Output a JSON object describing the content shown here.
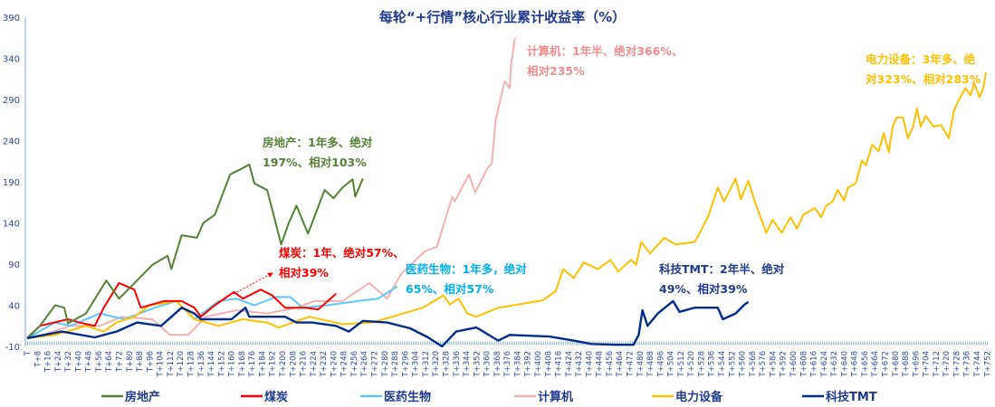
{
  "chart_data": {
    "type": "line",
    "title": "每轮“+行情”核心行业累计收益率（%）",
    "xlabel": "",
    "ylabel": "",
    "ylim": [
      -10,
      390
    ],
    "yticks": [
      "-10",
      "40",
      "90",
      "140",
      "190",
      "240",
      "290",
      "340",
      "390"
    ],
    "xlim": [
      0,
      752
    ],
    "xticks": [
      "T",
      "T+8",
      "T+16",
      "T+24",
      "T+32",
      "T+40",
      "T+48",
      "T+56",
      "T+64",
      "T+72",
      "T+80",
      "T+88",
      "T+96",
      "T+104",
      "T+112",
      "T+120",
      "T+128",
      "T+136",
      "T+144",
      "T+152",
      "T+160",
      "T+168",
      "T+176",
      "T+184",
      "T+192",
      "T+200",
      "T+208",
      "T+216",
      "T+224",
      "T+232",
      "T+240",
      "T+248",
      "T+256",
      "T+264",
      "T+272",
      "T+280",
      "T+288",
      "T+296",
      "T+304",
      "T+312",
      "T+320",
      "T+328",
      "T+336",
      "T+344",
      "T+352",
      "T+360",
      "T+368",
      "T+376",
      "T+384",
      "T+392",
      "T+400",
      "T+408",
      "T+416",
      "T+424",
      "T+432",
      "T+440",
      "T+448",
      "T+456",
      "T+464",
      "T+472",
      "T+480",
      "T+488",
      "T+496",
      "T+504",
      "T+512",
      "T+520",
      "T+528",
      "T+536",
      "T+544",
      "T+552",
      "T+560",
      "T+568",
      "T+576",
      "T+584",
      "T+592",
      "T+600",
      "T+608",
      "T+616",
      "T+624",
      "T+632",
      "T+640",
      "T+648",
      "T+656",
      "T+664",
      "T+672",
      "T+680",
      "T+688",
      "T+696",
      "T+704",
      "T+712",
      "T+720",
      "T+728",
      "T+736",
      "T+744",
      "T+752"
    ],
    "grid": false,
    "legend_placement": "bottom",
    "series": [
      {
        "name": "房地产",
        "color": "#538135",
        "points": [
          [
            0,
            0
          ],
          [
            10,
            15
          ],
          [
            22,
            40
          ],
          [
            29,
            37
          ],
          [
            32,
            18
          ],
          [
            46,
            30
          ],
          [
            62,
            70
          ],
          [
            72,
            48
          ],
          [
            86,
            70
          ],
          [
            98,
            89
          ],
          [
            110,
            100
          ],
          [
            113,
            84
          ],
          [
            121,
            125
          ],
          [
            133,
            122
          ],
          [
            138,
            140
          ],
          [
            147,
            150
          ],
          [
            159,
            199
          ],
          [
            167,
            205
          ],
          [
            174,
            211
          ],
          [
            178,
            188
          ],
          [
            188,
            180
          ],
          [
            193,
            150
          ],
          [
            199,
            114
          ],
          [
            205,
            140
          ],
          [
            211,
            161
          ],
          [
            220,
            127
          ],
          [
            233,
            180
          ],
          [
            240,
            170
          ],
          [
            247,
            183
          ],
          [
            255,
            193
          ],
          [
            257,
            172
          ],
          [
            263,
            194
          ]
        ]
      },
      {
        "name": "煤炭",
        "color": "#ff0000",
        "points": [
          [
            0,
            0
          ],
          [
            10,
            15
          ],
          [
            32,
            23
          ],
          [
            41,
            19
          ],
          [
            53,
            15
          ],
          [
            60,
            37
          ],
          [
            72,
            67
          ],
          [
            84,
            59
          ],
          [
            89,
            37
          ],
          [
            107,
            45
          ],
          [
            121,
            45
          ],
          [
            131,
            37
          ],
          [
            136,
            26
          ],
          [
            147,
            40
          ],
          [
            162,
            56
          ],
          [
            169,
            48
          ],
          [
            183,
            59
          ],
          [
            192,
            52
          ],
          [
            202,
            37
          ],
          [
            218,
            37
          ],
          [
            228,
            35
          ],
          [
            242,
            54
          ]
        ]
      },
      {
        "name": "医药生物",
        "color": "#5bc8f5",
        "points": [
          [
            0,
            0
          ],
          [
            22,
            19
          ],
          [
            34,
            15
          ],
          [
            57,
            30
          ],
          [
            76,
            23
          ],
          [
            100,
            37
          ],
          [
            117,
            45
          ],
          [
            131,
            23
          ],
          [
            150,
            45
          ],
          [
            164,
            48
          ],
          [
            178,
            40
          ],
          [
            195,
            50
          ],
          [
            206,
            50
          ],
          [
            216,
            37
          ],
          [
            235,
            40
          ],
          [
            259,
            45
          ],
          [
            275,
            48
          ],
          [
            288,
            61
          ],
          [
            290,
            63
          ]
        ]
      },
      {
        "name": "计算机",
        "color": "#f4b1b1",
        "points": [
          [
            0,
            0
          ],
          [
            14,
            5
          ],
          [
            34,
            15
          ],
          [
            57,
            15
          ],
          [
            74,
            26
          ],
          [
            98,
            23
          ],
          [
            112,
            4
          ],
          [
            126,
            4
          ],
          [
            140,
            26
          ],
          [
            164,
            34
          ],
          [
            188,
            30
          ],
          [
            211,
            37
          ],
          [
            225,
            45
          ],
          [
            247,
            45
          ],
          [
            268,
            67
          ],
          [
            282,
            48
          ],
          [
            293,
            78
          ],
          [
            312,
            106
          ],
          [
            321,
            111
          ],
          [
            333,
            172
          ],
          [
            335,
            166
          ],
          [
            346,
            199
          ],
          [
            351,
            177
          ],
          [
            360,
            205
          ],
          [
            364,
            213
          ],
          [
            367,
            265
          ],
          [
            374,
            312
          ],
          [
            378,
            304
          ],
          [
            379,
            331
          ],
          [
            382,
            365
          ]
        ]
      },
      {
        "name": "电力设备",
        "color": "#ffc000",
        "points": [
          [
            0,
            0
          ],
          [
            22,
            4
          ],
          [
            46,
            15
          ],
          [
            60,
            8
          ],
          [
            70,
            19
          ],
          [
            84,
            26
          ],
          [
            96,
            40
          ],
          [
            117,
            45
          ],
          [
            131,
            23
          ],
          [
            150,
            15
          ],
          [
            169,
            23
          ],
          [
            188,
            19
          ],
          [
            197,
            13
          ],
          [
            221,
            26
          ],
          [
            247,
            17
          ],
          [
            270,
            19
          ],
          [
            286,
            26
          ],
          [
            310,
            37
          ],
          [
            326,
            52
          ],
          [
            331,
            41
          ],
          [
            338,
            48
          ],
          [
            345,
            30
          ],
          [
            352,
            26
          ],
          [
            369,
            37
          ],
          [
            385,
            41
          ],
          [
            404,
            46
          ],
          [
            414,
            57
          ],
          [
            420,
            84
          ],
          [
            428,
            73
          ],
          [
            436,
            92
          ],
          [
            447,
            84
          ],
          [
            457,
            95
          ],
          [
            463,
            81
          ],
          [
            473,
            95
          ],
          [
            477,
            89
          ],
          [
            481,
            117
          ],
          [
            488,
            103
          ],
          [
            499,
            122
          ],
          [
            508,
            114
          ],
          [
            523,
            117
          ],
          [
            527,
            128
          ],
          [
            534,
            150
          ],
          [
            541,
            183
          ],
          [
            546,
            166
          ],
          [
            555,
            194
          ],
          [
            559,
            169
          ],
          [
            565,
            191
          ],
          [
            570,
            166
          ],
          [
            579,
            128
          ],
          [
            584,
            144
          ],
          [
            591,
            128
          ],
          [
            598,
            147
          ],
          [
            603,
            133
          ],
          [
            608,
            150
          ],
          [
            617,
            158
          ],
          [
            622,
            147
          ],
          [
            626,
            161
          ],
          [
            631,
            166
          ],
          [
            635,
            180
          ],
          [
            640,
            167
          ],
          [
            643,
            183
          ],
          [
            649,
            188
          ],
          [
            654,
            216
          ],
          [
            657,
            210
          ],
          [
            662,
            235
          ],
          [
            667,
            227
          ],
          [
            671,
            249
          ],
          [
            675,
            226
          ],
          [
            678,
            257
          ],
          [
            681,
            268
          ],
          [
            686,
            268
          ],
          [
            690,
            243
          ],
          [
            694,
            257
          ],
          [
            697,
            279
          ],
          [
            700,
            257
          ],
          [
            704,
            270
          ],
          [
            710,
            257
          ],
          [
            716,
            259
          ],
          [
            722,
            243
          ],
          [
            726,
            276
          ],
          [
            730,
            290
          ],
          [
            735,
            304
          ],
          [
            739,
            295
          ],
          [
            742,
            310
          ],
          [
            746,
            293
          ],
          [
            749,
            304
          ],
          [
            751,
            323
          ]
        ]
      },
      {
        "name": "科技TMT",
        "color": "#002c8a",
        "points": [
          [
            0,
            0
          ],
          [
            27,
            8
          ],
          [
            53,
            1
          ],
          [
            70,
            8
          ],
          [
            86,
            19
          ],
          [
            105,
            15
          ],
          [
            121,
            37
          ],
          [
            131,
            30
          ],
          [
            136,
            23
          ],
          [
            160,
            23
          ],
          [
            171,
            37
          ],
          [
            174,
            26
          ],
          [
            188,
            26
          ],
          [
            202,
            26
          ],
          [
            211,
            19
          ],
          [
            223,
            19
          ],
          [
            242,
            15
          ],
          [
            252,
            8
          ],
          [
            263,
            21
          ],
          [
            282,
            19
          ],
          [
            300,
            12
          ],
          [
            314,
            1
          ],
          [
            325,
            -10
          ],
          [
            336,
            8
          ],
          [
            352,
            13
          ],
          [
            369,
            -3
          ],
          [
            378,
            4
          ],
          [
            409,
            2
          ],
          [
            428,
            -3
          ],
          [
            442,
            -7
          ],
          [
            461,
            -8
          ],
          [
            475,
            -8
          ],
          [
            479,
            4
          ],
          [
            482,
            34
          ],
          [
            486,
            15
          ],
          [
            494,
            30
          ],
          [
            506,
            45
          ],
          [
            511,
            32
          ],
          [
            523,
            37
          ],
          [
            541,
            37
          ],
          [
            545,
            23
          ],
          [
            555,
            30
          ],
          [
            562,
            41
          ],
          [
            565,
            44
          ]
        ]
      }
    ],
    "annotations": [
      {
        "series": "房地产",
        "color": "#538135",
        "lines": [
          "房地产：1年多、绝对",
          "197%、相对103%"
        ]
      },
      {
        "series": "煤炭",
        "color": "#ff0000",
        "lines": [
          "煤炭：1年、绝对57%、",
          "相对39%"
        ]
      },
      {
        "series": "医药生物",
        "color": "#00b0f0",
        "lines": [
          "医药生物：1年多，绝对",
          "65%、相对57%"
        ]
      },
      {
        "series": "计算机",
        "color": "#f08c8c",
        "lines": [
          "计算机：1年半、绝对366%、",
          "相对235%"
        ]
      },
      {
        "series": "电力设备",
        "color": "#ffc000",
        "lines": [
          "电力设备：3年多、绝",
          "对323%、相对283%"
        ]
      },
      {
        "series": "科技TMT",
        "color": "#1f3a8a",
        "lines": [
          "科技TMT：2年半、绝对",
          "49%、相对39%"
        ]
      }
    ]
  }
}
